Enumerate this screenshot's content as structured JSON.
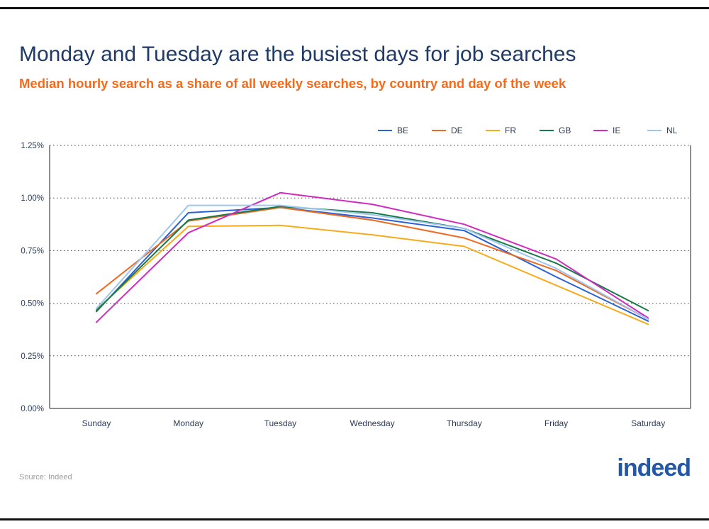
{
  "header": {
    "title": "Monday and Tuesday are the busiest days for job searches",
    "subtitle": "Median hourly search as a share of all weekly searches, by country and day of the week"
  },
  "footer": {
    "source": "Source: Indeed",
    "logo_text": "indeed"
  },
  "colors": {
    "title": "#1f3a66",
    "subtitle": "#f26b1d",
    "logo": "#2557a7"
  },
  "chart_data": {
    "type": "line",
    "title": "",
    "xlabel": "",
    "ylabel": "",
    "categories": [
      "Sunday",
      "Monday",
      "Tuesday",
      "Wednesday",
      "Thursday",
      "Friday",
      "Saturday"
    ],
    "ylim": [
      0,
      1.25
    ],
    "yticks": [
      0,
      0.25,
      0.5,
      0.75,
      1.0,
      1.25
    ],
    "ytick_labels": [
      "0.00%",
      "0.25%",
      "0.50%",
      "0.75%",
      "1.00%",
      "1.25%"
    ],
    "grid": "horizontal dotted",
    "legend_position": "top-right",
    "series": [
      {
        "name": "BE",
        "color": "#2a62d6",
        "values": [
          0.46,
          0.93,
          0.955,
          0.905,
          0.845,
          0.625,
          0.415
        ]
      },
      {
        "name": "DE",
        "color": "#ee6a22",
        "values": [
          0.545,
          0.89,
          0.955,
          0.895,
          0.81,
          0.655,
          0.425
        ]
      },
      {
        "name": "FR",
        "color": "#f7aa1a",
        "values": [
          0.47,
          0.865,
          0.87,
          0.825,
          0.77,
          0.585,
          0.4
        ]
      },
      {
        "name": "GB",
        "color": "#18794a",
        "values": [
          0.465,
          0.895,
          0.96,
          0.93,
          0.855,
          0.69,
          0.465
        ]
      },
      {
        "name": "IE",
        "color": "#cf2cbf",
        "values": [
          0.41,
          0.835,
          1.025,
          0.97,
          0.875,
          0.71,
          0.43
        ]
      },
      {
        "name": "NL",
        "color": "#9ec6f0",
        "values": [
          0.475,
          0.965,
          0.965,
          0.92,
          0.855,
          0.665,
          0.425
        ]
      }
    ]
  }
}
